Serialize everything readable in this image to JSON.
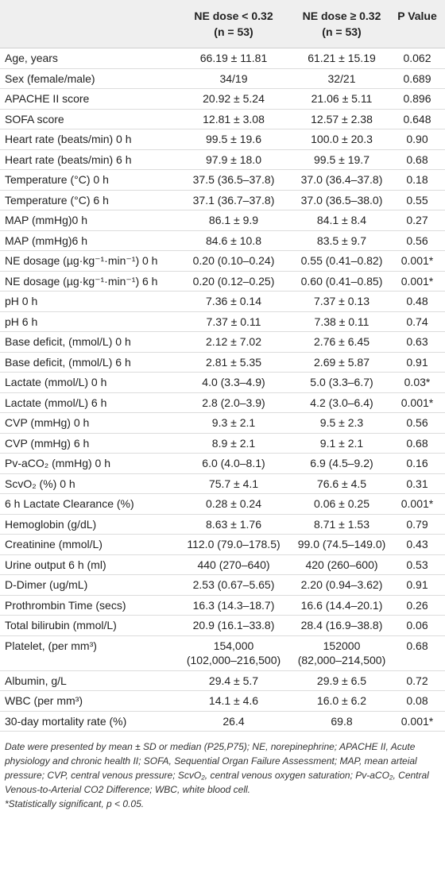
{
  "table": {
    "columns": [
      {
        "label": "NE dose < 0.32",
        "n": "(n = 53)"
      },
      {
        "label": "NE dose ≥ 0.32",
        "n": "(n = 53)"
      },
      {
        "label": "P Value"
      }
    ],
    "rows": [
      [
        "Age, years",
        "66.19 ± 11.81",
        "61.21 ± 15.19",
        "0.062"
      ],
      [
        "Sex (female/male)",
        "34/19",
        "32/21",
        "0.689"
      ],
      [
        "APACHE II score",
        "20.92 ± 5.24",
        "21.06 ± 5.11",
        "0.896"
      ],
      [
        "SOFA score",
        "12.81 ± 3.08",
        "12.57 ± 2.38",
        "0.648"
      ],
      [
        "Heart rate (beats/min) 0 h",
        "99.5 ± 19.6",
        "100.0 ± 20.3",
        "0.90"
      ],
      [
        "Heart rate (beats/min) 6 h",
        "97.9 ± 18.0",
        "99.5 ± 19.7",
        "0.68"
      ],
      [
        "Temperature (°C) 0 h",
        "37.5 (36.5–37.8)",
        "37.0 (36.4–37.8)",
        "0.18"
      ],
      [
        "Temperature (°C) 6 h",
        "37.1 (36.7–37.8)",
        "37.0 (36.5–38.0)",
        "0.55"
      ],
      [
        "MAP (mmHg)0 h",
        "86.1 ± 9.9",
        "84.1 ± 8.4",
        "0.27"
      ],
      [
        "MAP (mmHg)6 h",
        "84.6 ± 10.8",
        "83.5 ± 9.7",
        "0.56"
      ],
      [
        "NE dosage (µg·kg⁻¹·min⁻¹) 0 h",
        "0.20 (0.10–0.24)",
        "0.55 (0.41–0.82)",
        "0.001*"
      ],
      [
        "NE dosage (µg·kg⁻¹·min⁻¹) 6 h",
        "0.20 (0.12–0.25)",
        "0.60 (0.41–0.85)",
        "0.001*"
      ],
      [
        "pH 0 h",
        "7.36 ± 0.14",
        "7.37 ± 0.13",
        "0.48"
      ],
      [
        "pH 6 h",
        "7.37 ± 0.11",
        "7.38 ± 0.11",
        "0.74"
      ],
      [
        "Base deficit, (mmol/L) 0 h",
        "2.12 ± 7.02",
        "2.76 ± 6.45",
        "0.63"
      ],
      [
        "Base deficit, (mmol/L) 6 h",
        "2.81 ± 5.35",
        "2.69 ± 5.87",
        "0.91"
      ],
      [
        "Lactate (mmol/L) 0 h",
        "4.0 (3.3–4.9)",
        "5.0 (3.3–6.7)",
        "0.03*"
      ],
      [
        "Lactate (mmol/L) 6 h",
        "2.8 (2.0–3.9)",
        "4.2 (3.0–6.4)",
        "0.001*"
      ],
      [
        "CVP (mmHg) 0 h",
        "9.3 ± 2.1",
        "9.5 ± 2.3",
        "0.56"
      ],
      [
        "CVP (mmHg) 6 h",
        "8.9 ± 2.1",
        "9.1 ± 2.1",
        "0.68"
      ],
      [
        "Pv-aCO₂ (mmHg) 0 h",
        "6.0 (4.0–8.1)",
        "6.9 (4.5–9.2)",
        "0.16"
      ],
      [
        "ScvO₂ (%) 0 h",
        "75.7 ± 4.1",
        "76.6 ± 4.5",
        "0.31"
      ],
      [
        "6 h Lactate Clearance (%)",
        "0.28 ± 0.24",
        "0.06 ± 0.25",
        "0.001*"
      ],
      [
        "Hemoglobin (g/dL)",
        "8.63 ± 1.76",
        "8.71 ± 1.53",
        "0.79"
      ],
      [
        "Creatinine (mmol/L)",
        "112.0 (79.0–178.5)",
        "99.0 (74.5–149.0)",
        "0.43"
      ],
      [
        "Urine output 6 h (ml)",
        "440 (270–640)",
        "420 (260–600)",
        "0.53"
      ],
      [
        "D-Dimer (ug/mL)",
        "2.53 (0.67–5.65)",
        "2.20 (0.94–3.62)",
        "0.91"
      ],
      [
        "Prothrombin Time (secs)",
        "16.3 (14.3–18.7)",
        "16.6 (14.4–20.1)",
        "0.26"
      ],
      [
        "Total bilirubin (mmol/L)",
        "20.9 (16.1–33.8)",
        "28.4 (16.9–38.8)",
        "0.06"
      ],
      [
        "Platelet, (per mm³)",
        "154,000\n(102,000–216,500)",
        "152000\n(82,000–214,500)",
        "0.68"
      ],
      [
        "Albumin, g/L",
        "29.4 ± 5.7",
        "29.9 ± 6.5",
        "0.72"
      ],
      [
        "WBC (per mm³)",
        "14.1 ± 4.6",
        "16.0 ± 6.2",
        "0.08"
      ],
      [
        "30-day mortality rate (%)",
        "26.4",
        "69.8",
        "0.001*"
      ]
    ]
  },
  "footnote": {
    "text": "Date were presented by mean ± SD or median (P25,P75); NE, norepinephrine; APACHE II, Acute physiology and chronic health II; SOFA, Sequential Organ Failure Assessment; MAP, mean arteial pressure; CVP, central venous pressure; ScvO₂, central venous oxygen saturation; Pv-aCO₂, Central Venous-to-Arterial CO2 Difference; WBC, white blood cell.",
    "significance": "*Statistically significant, p < 0.05."
  }
}
